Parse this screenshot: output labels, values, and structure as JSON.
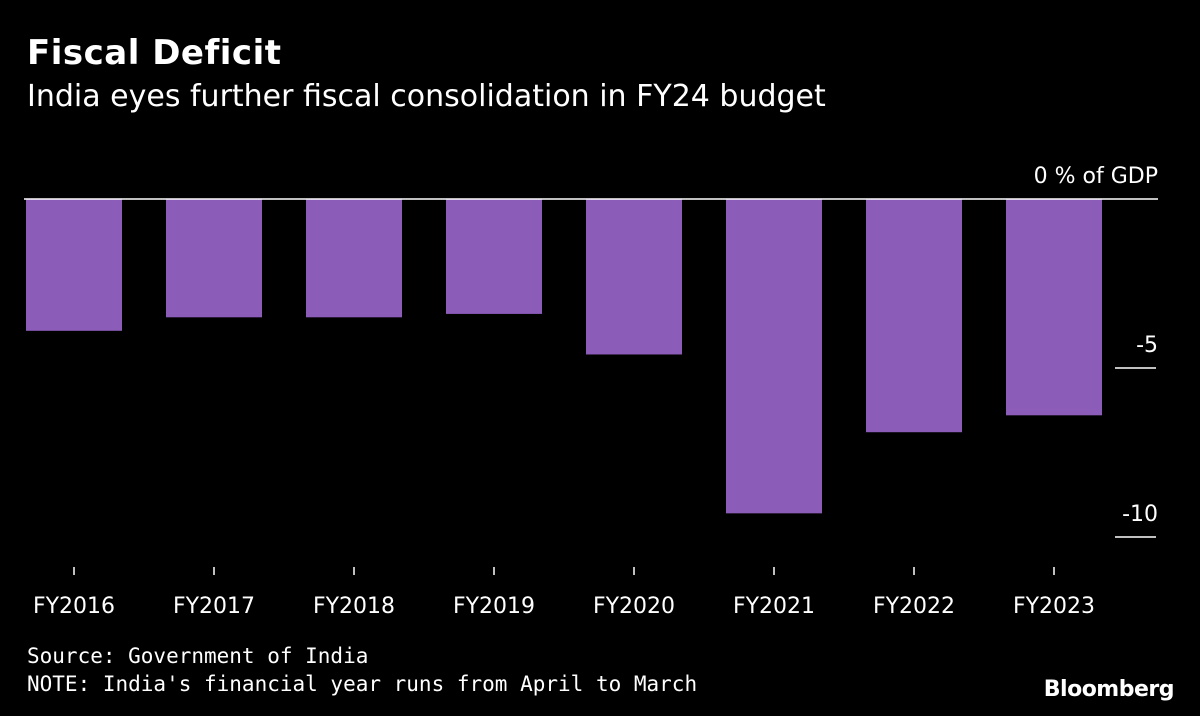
{
  "chart_data": {
    "type": "bar",
    "title": "Fiscal Deficit",
    "subtitle": "India eyes further fiscal consolidation in FY24 budget",
    "categories": [
      "FY2016",
      "FY2017",
      "FY2018",
      "FY2019",
      "FY2020",
      "FY2021",
      "FY2022",
      "FY2023"
    ],
    "values": [
      -3.9,
      -3.5,
      -3.5,
      -3.4,
      -4.6,
      -9.3,
      -6.9,
      -6.4
    ],
    "ylabel": "% of GDP",
    "ylim": [
      -10.5,
      0
    ],
    "y_ticks": [
      {
        "value": 0,
        "label": "0 % of GDP"
      },
      {
        "value": -5,
        "label": "-5"
      },
      {
        "value": -10,
        "label": "-10"
      }
    ],
    "bar_color": "#8B5CB8",
    "axis_position": "right",
    "grid": false,
    "legend": "none"
  },
  "footer": {
    "source": "Source: Government of India",
    "note": "NOTE: India's financial year runs from April to March",
    "brand": "Bloomberg"
  }
}
